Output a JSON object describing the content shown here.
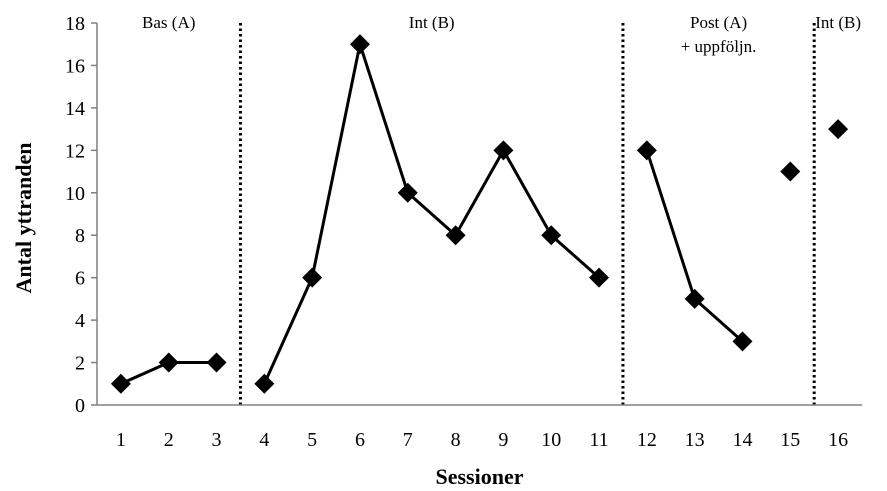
{
  "chart_data": {
    "type": "line",
    "xlabel": "Sessioner",
    "ylabel": "Antal yttranden",
    "ylim": [
      0,
      18
    ],
    "xlim": [
      0.5,
      16.5
    ],
    "yticks": [
      0,
      2,
      4,
      6,
      8,
      10,
      12,
      14,
      16,
      18
    ],
    "xticks": [
      1,
      2,
      3,
      4,
      5,
      6,
      7,
      8,
      9,
      10,
      11,
      12,
      13,
      14,
      15,
      16
    ],
    "grid": false,
    "phase_lines": [
      3.5,
      11.5,
      15.5
    ],
    "phases": [
      {
        "lines": [
          "Bas (A)"
        ],
        "x": 2
      },
      {
        "lines": [
          "Int (B)"
        ],
        "x": 7.5
      },
      {
        "lines": [
          "Post (A)",
          "+ uppföljn."
        ],
        "x": 13.5
      },
      {
        "lines": [
          "Int (B)"
        ],
        "x": 16
      }
    ],
    "segments": [
      {
        "x": [
          1,
          2,
          3
        ],
        "y": [
          1,
          2,
          2
        ]
      },
      {
        "x": [
          4,
          5,
          6,
          7,
          8,
          9,
          10,
          11
        ],
        "y": [
          1,
          6,
          17,
          10,
          8,
          12,
          8,
          6
        ]
      },
      {
        "x": [
          12,
          13,
          14
        ],
        "y": [
          12,
          5,
          3
        ]
      },
      {
        "x": [
          15
        ],
        "y": [
          11
        ]
      },
      {
        "x": [
          16
        ],
        "y": [
          13
        ]
      }
    ],
    "line_color": "#000000",
    "marker": "diamond"
  }
}
